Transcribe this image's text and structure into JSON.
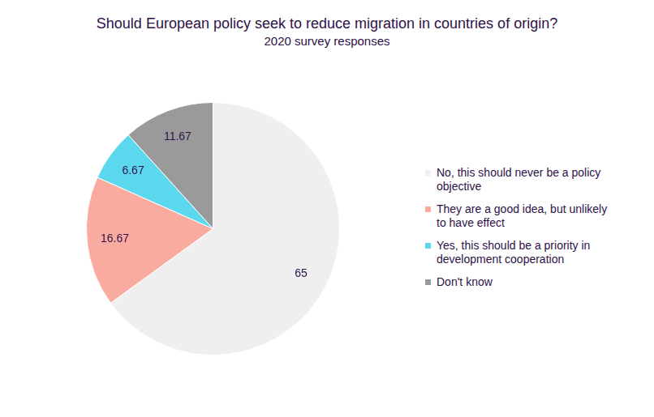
{
  "chart_data": {
    "type": "pie",
    "title": "Should European policy seek to reduce migration in countries of origin?",
    "subtitle": "2020 survey responses",
    "categories": [
      "No, this should never be a policy objective",
      "They are a good idea, but unlikely to have effect",
      "Yes, this should be a priority in development cooperation",
      "Don't know"
    ],
    "values": [
      65,
      16.67,
      6.67,
      11.67
    ],
    "colors": [
      "#efefef",
      "#f9ab9f",
      "#5bd8ee",
      "#9a9a9a"
    ],
    "data_labels": true,
    "legend": "right"
  }
}
